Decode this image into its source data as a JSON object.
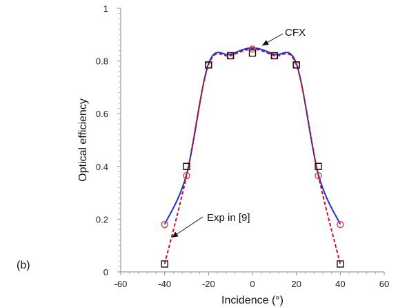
{
  "chart_data": {
    "type": "line",
    "panel_label": "(b)",
    "xlabel": "Incidence (°)",
    "ylabel": "Optical efficiency",
    "xlim": [
      -60,
      60
    ],
    "ylim": [
      0,
      1
    ],
    "xticks": [
      -60,
      -40,
      -20,
      0,
      20,
      40,
      60
    ],
    "yticks": [
      0,
      0.2,
      0.4,
      0.6,
      0.8,
      1
    ],
    "xtick_labels": [
      "-60",
      "-40",
      "-20",
      "0",
      "20",
      "40",
      "60"
    ],
    "ytick_labels": [
      "0",
      "0.2",
      "0.4",
      "0.6",
      "0.8",
      "1"
    ],
    "grid": false,
    "series": [
      {
        "name": "CFX",
        "style": "solid-line",
        "color": "#1a2fd6",
        "x": [
          -40,
          -30,
          -20,
          -10,
          0,
          10,
          20,
          30,
          40
        ],
        "y": [
          0.18,
          0.37,
          0.79,
          0.825,
          0.85,
          0.825,
          0.79,
          0.37,
          0.18
        ]
      },
      {
        "name": "",
        "style": "dashed-line-circle-markers",
        "color": "#c0161b",
        "marker_color": "#e8363c",
        "x": [
          -40,
          -30,
          -20,
          -10,
          0,
          10,
          20,
          30,
          40
        ],
        "y": [
          0.18,
          0.365,
          0.785,
          0.82,
          0.845,
          0.82,
          0.785,
          0.365,
          0.18
        ]
      },
      {
        "name": "Exp in [9]",
        "style": "square-markers",
        "color": "#111111",
        "x": [
          -40,
          -30,
          -20,
          -10,
          0,
          10,
          20,
          30,
          40
        ],
        "y": [
          0.03,
          0.4,
          0.785,
          0.82,
          0.83,
          0.82,
          0.785,
          0.4,
          0.03
        ]
      }
    ],
    "annotations": [
      {
        "text": "CFX",
        "points_to": "CFX"
      },
      {
        "text": "Exp in [9]",
        "points_to": "Exp in [9]"
      }
    ]
  }
}
